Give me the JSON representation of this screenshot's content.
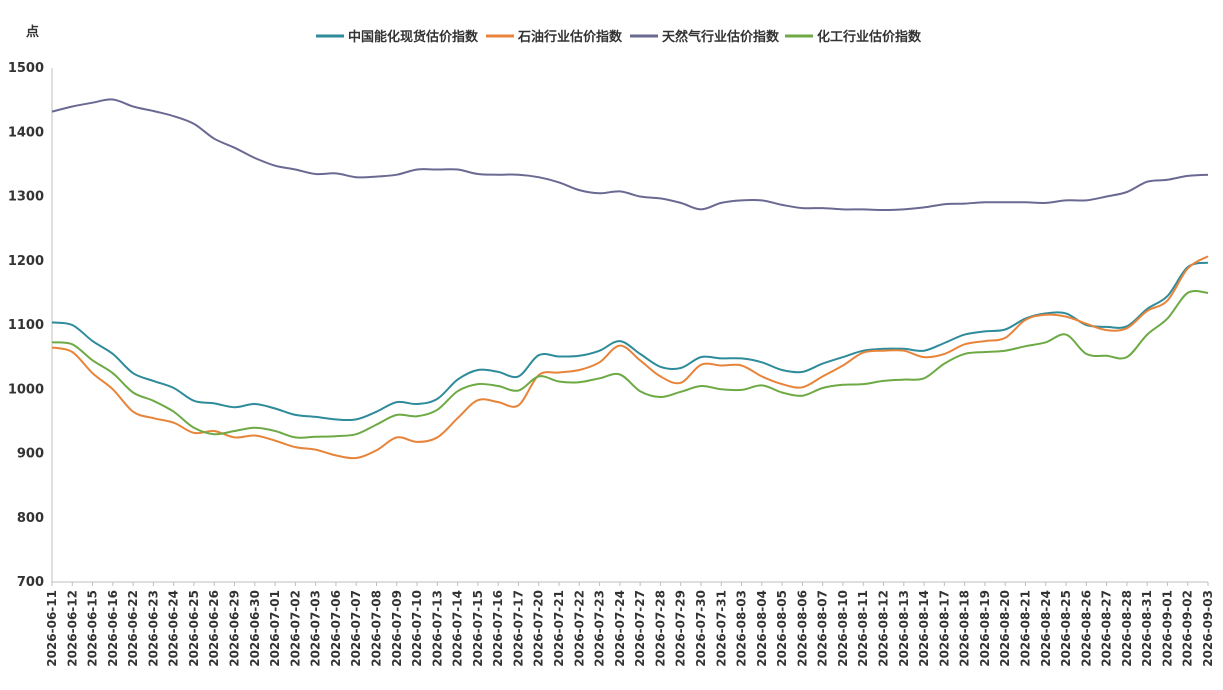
{
  "chart_data": {
    "type": "line",
    "unit_label": "点",
    "ylim": [
      700,
      1500
    ],
    "yticks": [
      700,
      800,
      900,
      1000,
      1100,
      1200,
      1300,
      1400,
      1500
    ],
    "grid": false,
    "legend_position": "top-center",
    "x": [
      "2026-06-11",
      "2026-06-12",
      "2026-06-15",
      "2026-06-16",
      "2026-06-22",
      "2026-06-23",
      "2026-06-24",
      "2026-06-25",
      "2026-06-26",
      "2026-06-29",
      "2026-06-30",
      "2026-07-01",
      "2026-07-02",
      "2026-07-03",
      "2026-07-06",
      "2026-07-07",
      "2026-07-08",
      "2026-07-09",
      "2026-07-10",
      "2026-07-13",
      "2026-07-14",
      "2026-07-15",
      "2026-07-16",
      "2026-07-17",
      "2026-07-20",
      "2026-07-21",
      "2026-07-22",
      "2026-07-23",
      "2026-07-24",
      "2026-07-27",
      "2026-07-28",
      "2026-07-29",
      "2026-07-30",
      "2026-07-31",
      "2026-08-03",
      "2026-08-04",
      "2026-08-05",
      "2026-08-06",
      "2026-08-07",
      "2026-08-10",
      "2026-08-11",
      "2026-08-12",
      "2026-08-13",
      "2026-08-14",
      "2026-08-17",
      "2026-08-18",
      "2026-08-19",
      "2026-08-20",
      "2026-08-21",
      "2026-08-24",
      "2026-08-25",
      "2026-08-26",
      "2026-08-27",
      "2026-08-28",
      "2026-08-31",
      "2026-09-01",
      "2026-09-02",
      "2026-09-03"
    ],
    "series": [
      {
        "name": "中国能化现货估价指数",
        "color": "#2E8B9A",
        "values": [
          1104,
          1100,
          1075,
          1055,
          1025,
          1013,
          1002,
          982,
          978,
          972,
          977,
          970,
          960,
          957,
          953,
          953,
          965,
          980,
          977,
          985,
          1015,
          1030,
          1027,
          1020,
          1053,
          1051,
          1052,
          1060,
          1075,
          1055,
          1035,
          1033,
          1050,
          1048,
          1048,
          1042,
          1030,
          1027,
          1040,
          1050,
          1060,
          1063,
          1063,
          1060,
          1072,
          1085,
          1090,
          1093,
          1110,
          1118,
          1118,
          1100,
          1097,
          1098,
          1125,
          1145,
          1190,
          1197
        ]
      },
      {
        "name": "石油行业估价指数",
        "color": "#E8843A",
        "values": [
          1065,
          1058,
          1025,
          1000,
          965,
          955,
          948,
          932,
          935,
          925,
          928,
          920,
          910,
          906,
          897,
          893,
          905,
          925,
          918,
          925,
          955,
          983,
          980,
          975,
          1022,
          1026,
          1030,
          1042,
          1068,
          1045,
          1020,
          1010,
          1038,
          1037,
          1037,
          1020,
          1008,
          1003,
          1020,
          1037,
          1057,
          1060,
          1060,
          1050,
          1055,
          1070,
          1075,
          1080,
          1108,
          1116,
          1113,
          1102,
          1092,
          1095,
          1122,
          1138,
          1188,
          1207
        ]
      },
      {
        "name": "天然气行业估价指数",
        "color": "#6A6992",
        "values": [
          1432,
          1440,
          1446,
          1451,
          1440,
          1433,
          1425,
          1413,
          1390,
          1376,
          1360,
          1348,
          1342,
          1335,
          1336,
          1330,
          1331,
          1334,
          1342,
          1342,
          1342,
          1335,
          1334,
          1334,
          1330,
          1322,
          1310,
          1305,
          1308,
          1300,
          1297,
          1290,
          1280,
          1290,
          1294,
          1294,
          1287,
          1282,
          1282,
          1280,
          1280,
          1279,
          1280,
          1283,
          1288,
          1289,
          1291,
          1291,
          1291,
          1290,
          1294,
          1294,
          1300,
          1307,
          1323,
          1326,
          1332,
          1334
        ]
      },
      {
        "name": "化工行业估价指数",
        "color": "#6DAA45",
        "values": [
          1073,
          1070,
          1045,
          1025,
          995,
          982,
          965,
          940,
          930,
          935,
          940,
          935,
          925,
          926,
          927,
          930,
          945,
          960,
          958,
          968,
          997,
          1008,
          1005,
          998,
          1020,
          1012,
          1011,
          1017,
          1023,
          997,
          988,
          996,
          1005,
          1000,
          999,
          1006,
          995,
          990,
          1002,
          1007,
          1008,
          1013,
          1015,
          1017,
          1040,
          1055,
          1058,
          1060,
          1067,
          1073,
          1085,
          1055,
          1052,
          1050,
          1085,
          1110,
          1150,
          1150
        ]
      }
    ]
  }
}
